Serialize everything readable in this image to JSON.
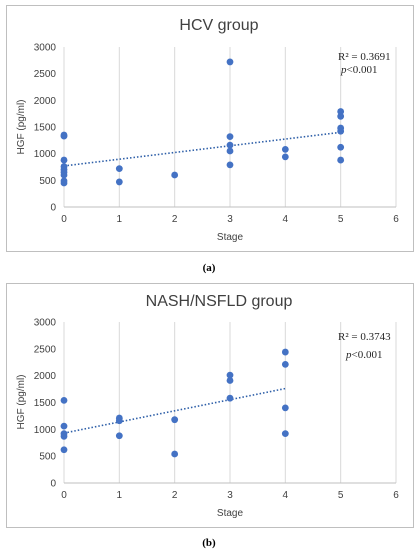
{
  "chart_data": [
    {
      "type": "scatter",
      "title": "HCV group",
      "xlabel": "Stage",
      "ylabel": "HGF (pg/ml)",
      "xlim": [
        0,
        6
      ],
      "ylim": [
        0,
        3000
      ],
      "xticks": [
        "0",
        "1",
        "2",
        "3",
        "4",
        "5",
        "6"
      ],
      "yticks": [
        "0",
        "500",
        "1000",
        "1500",
        "2000",
        "2500",
        "3000"
      ],
      "grid": "vertical",
      "r2_label": "R² = 0.3691",
      "p_prefix": "p",
      "p_value": "<0.001",
      "caption": "(a)",
      "color": "#4472c4",
      "points": [
        {
          "x": 0,
          "y": 1350
        },
        {
          "x": 0,
          "y": 1330
        },
        {
          "x": 0,
          "y": 880
        },
        {
          "x": 0,
          "y": 760
        },
        {
          "x": 0,
          "y": 700
        },
        {
          "x": 0,
          "y": 650
        },
        {
          "x": 0,
          "y": 600
        },
        {
          "x": 0,
          "y": 490
        },
        {
          "x": 0,
          "y": 450
        },
        {
          "x": 1,
          "y": 720
        },
        {
          "x": 1,
          "y": 470
        },
        {
          "x": 2,
          "y": 600
        },
        {
          "x": 3,
          "y": 2720
        },
        {
          "x": 3,
          "y": 1320
        },
        {
          "x": 3,
          "y": 1160
        },
        {
          "x": 3,
          "y": 1050
        },
        {
          "x": 3,
          "y": 790
        },
        {
          "x": 4,
          "y": 1080
        },
        {
          "x": 4,
          "y": 940
        },
        {
          "x": 5,
          "y": 1790
        },
        {
          "x": 5,
          "y": 1700
        },
        {
          "x": 5,
          "y": 1480
        },
        {
          "x": 5,
          "y": 1420
        },
        {
          "x": 5,
          "y": 1120
        },
        {
          "x": 5,
          "y": 880
        }
      ],
      "trendline": {
        "x": [
          0,
          5
        ],
        "y": [
          770,
          1400
        ]
      }
    },
    {
      "type": "scatter",
      "title": "NASH/NSFLD group",
      "xlabel": "Stage",
      "ylabel": "HGF (pg/ml)",
      "xlim": [
        0,
        6
      ],
      "ylim": [
        0,
        3000
      ],
      "xticks": [
        "0",
        "1",
        "2",
        "3",
        "4",
        "5",
        "6"
      ],
      "yticks": [
        "0",
        "500",
        "1000",
        "1500",
        "2000",
        "2500",
        "3000"
      ],
      "grid": "vertical",
      "r2_label": "R² = 0.3743",
      "p_prefix": "p",
      "p_value": "<0.001",
      "caption": "(b)",
      "color": "#4472c4",
      "points": [
        {
          "x": 0,
          "y": 1540
        },
        {
          "x": 0,
          "y": 1060
        },
        {
          "x": 0,
          "y": 920
        },
        {
          "x": 0,
          "y": 870
        },
        {
          "x": 0,
          "y": 620
        },
        {
          "x": 1,
          "y": 1210
        },
        {
          "x": 1,
          "y": 1160
        },
        {
          "x": 1,
          "y": 880
        },
        {
          "x": 2,
          "y": 1180
        },
        {
          "x": 2,
          "y": 540
        },
        {
          "x": 3,
          "y": 2010
        },
        {
          "x": 3,
          "y": 1910
        },
        {
          "x": 3,
          "y": 1580
        },
        {
          "x": 4,
          "y": 2440
        },
        {
          "x": 4,
          "y": 2210
        },
        {
          "x": 4,
          "y": 1400
        },
        {
          "x": 4,
          "y": 920
        }
      ],
      "trendline": {
        "x": [
          0,
          4
        ],
        "y": [
          930,
          1760
        ]
      }
    }
  ]
}
